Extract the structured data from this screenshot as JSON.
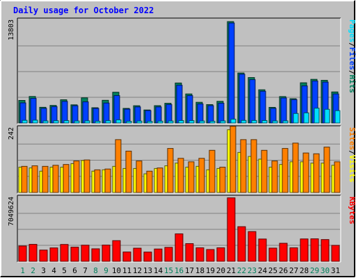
{
  "chart_data": {
    "type": "bar",
    "title": "Daily usage for October 2022",
    "categories": [
      "1",
      "2",
      "3",
      "4",
      "5",
      "6",
      "7",
      "8",
      "9",
      "10",
      "11",
      "12",
      "13",
      "14",
      "15",
      "16",
      "17",
      "18",
      "19",
      "20",
      "21",
      "22",
      "23",
      "24",
      "25",
      "26",
      "27",
      "28",
      "29",
      "30",
      "31"
    ],
    "weekend_days": [
      "1",
      "2",
      "8",
      "9",
      "15",
      "16",
      "22",
      "23",
      "29",
      "30"
    ],
    "panels": [
      {
        "name": "hits-files-pages",
        "axis_label": "13803",
        "ylim": [
          0,
          13803
        ],
        "legend": [
          {
            "label": "Pages",
            "color": "#00e0ff"
          },
          {
            "label": "/",
            "color": "#000000"
          },
          {
            "label": "Files",
            "color": "#0040ff"
          },
          {
            "label": "/",
            "color": "#000000"
          },
          {
            "label": "Hits",
            "color": "#00805c"
          }
        ],
        "series": [
          {
            "name": "Hits",
            "color": "#00805c",
            "values": [
              3030,
              3560,
              2110,
              2360,
              3120,
              2440,
              3380,
              2050,
              3050,
              4130,
              1960,
              2320,
              1750,
              2330,
              2650,
              5370,
              3900,
              2780,
              2470,
              2910,
              13610,
              6710,
              6100,
              4460,
              2100,
              3550,
              3260,
              5400,
              5860,
              5730,
              4170
            ]
          },
          {
            "name": "Files",
            "color": "#0040ff",
            "values": [
              2700,
              3300,
              1960,
              2200,
              2900,
              2320,
              2840,
              1960,
              2680,
              3680,
              1860,
              2160,
              1670,
              2160,
              2480,
              5070,
              3680,
              2560,
              2330,
              2660,
              13420,
              6550,
              5820,
              4260,
              1960,
              3360,
              3140,
              4980,
              5640,
              5490,
              3900
            ]
          },
          {
            "name": "Pages",
            "color": "#00e0ff",
            "values": [
              360,
              380,
              280,
              310,
              320,
              270,
              290,
              240,
              310,
              420,
              230,
              260,
              220,
              250,
              270,
              330,
              320,
              270,
              240,
              280,
              520,
              350,
              340,
              330,
              280,
              290,
              1280,
              1360,
              1990,
              1840,
              1660
            ]
          }
        ]
      },
      {
        "name": "visits-sites",
        "axis_label": "242",
        "ylim": [
          0,
          242
        ],
        "legend": [
          {
            "label": "Sites",
            "color": "#ff8000"
          },
          {
            "label": "/",
            "color": "#000000"
          },
          {
            "label": "Visits",
            "color": "#ffff00"
          }
        ],
        "series": [
          {
            "name": "Visits",
            "color": "#ffff00",
            "values": [
              95,
              92,
              80,
              95,
              95,
              108,
              120,
              80,
              85,
              98,
              90,
              90,
              70,
              90,
              100,
              110,
              95,
              98,
              85,
              90,
              235,
              150,
              135,
              125,
              95,
              105,
              115,
              115,
              110,
              110,
              102
            ]
          },
          {
            "name": "Sites",
            "color": "#ff8000",
            "values": [
              98,
              100,
              98,
              102,
              105,
              118,
              122,
              85,
              88,
              198,
              155,
              118,
              80,
              92,
              165,
              128,
              115,
              128,
              158,
              95,
              248,
              198,
              198,
              158,
              118,
              165,
              185,
              148,
              145,
              170,
              115
            ]
          }
        ]
      },
      {
        "name": "kbytes",
        "axis_label": "7049624",
        "ylim": [
          0,
          7049624
        ],
        "legend": [
          {
            "label": "KBytes",
            "color": "#ff0000"
          }
        ],
        "series": [
          {
            "name": "KBytes",
            "color": "#ff0000",
            "values": [
              1690000,
              1870000,
              1240000,
              1480000,
              1860000,
              1560000,
              1780000,
              1380000,
              1790000,
              2280000,
              1030000,
              1450000,
              1020000,
              1360000,
              1540000,
              3030000,
              1950000,
              1490000,
              1300000,
              1490000,
              7000000,
              3820000,
              3280000,
              2460000,
              1460000,
              1990000,
              1490000,
              2470000,
              2480000,
              2400000,
              1760000
            ]
          }
        ]
      }
    ],
    "grid": true
  }
}
